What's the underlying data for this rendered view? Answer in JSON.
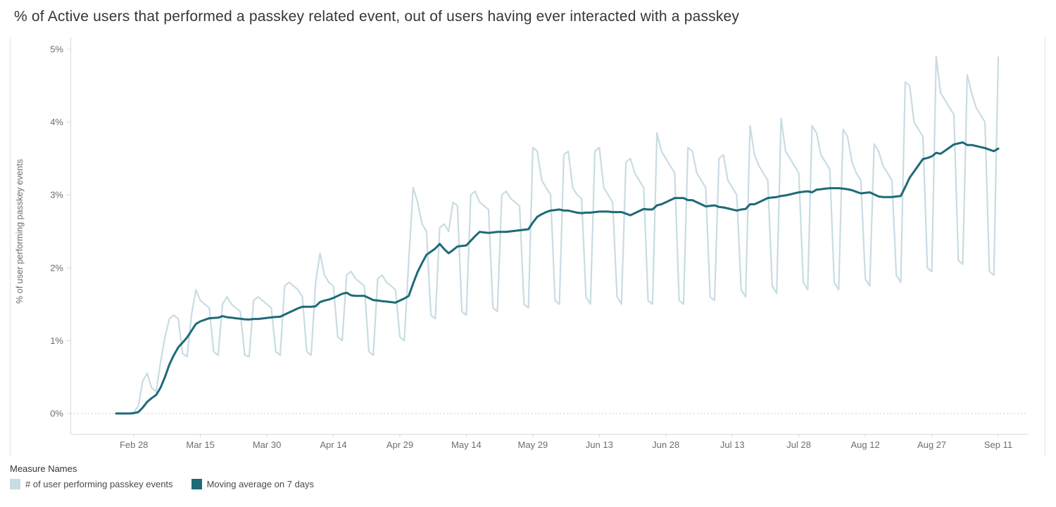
{
  "page": {
    "title": "% of Active users that performed a passkey related event, out of users having ever interacted with a passkey"
  },
  "colors": {
    "background": "#ffffff",
    "daily_series": "#c8dce3",
    "moving_average_series": "#1e6a77",
    "axis_line": "#d8d8d8",
    "zero_gridline": "#c9c9c9",
    "tick_text": "#6e6e6e",
    "title_text": "#363636"
  },
  "legend": {
    "title": "Measure Names",
    "items": [
      {
        "label": "# of user performing passkey events",
        "color": "#c8dce3"
      },
      {
        "label": "Moving average on 7 days",
        "color": "#1e6a77"
      }
    ]
  },
  "chart_data": {
    "type": "line",
    "title": "% of Active users that performed a passkey related event, out of users having ever interacted with a passkey",
    "xlabel": "",
    "ylabel": "% of user performing passkey events",
    "ylim": [
      0,
      5
    ],
    "y_ticks": [
      "0%",
      "1%",
      "2%",
      "3%",
      "4%",
      "5%"
    ],
    "y_tick_values": [
      0,
      1,
      2,
      3,
      4,
      5
    ],
    "grid": "dotted horizontal line at 0% only, white plot background",
    "legend_position": "bottom-left",
    "x_unit": "daily points, one per day",
    "x_tick_labels": [
      "Feb 28",
      "Mar 15",
      "Mar 30",
      "Apr 14",
      "Apr 29",
      "May 14",
      "May 29",
      "Jun 13",
      "Jun 28",
      "Jul 13",
      "Jul 28",
      "Aug 12",
      "Aug 27",
      "Sep 11"
    ],
    "x_tick_day_indices": [
      4,
      19,
      34,
      49,
      64,
      79,
      94,
      109,
      124,
      139,
      154,
      169,
      184,
      199
    ],
    "series": [
      {
        "name": "# of user performing passkey events",
        "color": "#c8dce3",
        "values": [
          0.0,
          0.0,
          0.0,
          0.0,
          0.02,
          0.1,
          0.45,
          0.55,
          0.35,
          0.3,
          0.7,
          1.05,
          1.3,
          1.35,
          1.3,
          0.82,
          0.78,
          1.35,
          1.7,
          1.55,
          1.5,
          1.45,
          0.85,
          0.8,
          1.5,
          1.6,
          1.5,
          1.45,
          1.4,
          0.8,
          0.78,
          1.55,
          1.6,
          1.55,
          1.5,
          1.45,
          0.85,
          0.8,
          1.75,
          1.8,
          1.75,
          1.7,
          1.6,
          0.85,
          0.8,
          1.8,
          2.2,
          1.9,
          1.8,
          1.75,
          1.05,
          1.0,
          1.9,
          1.95,
          1.85,
          1.8,
          1.75,
          0.85,
          0.8,
          1.85,
          1.9,
          1.8,
          1.75,
          1.7,
          1.05,
          1.0,
          2.1,
          3.1,
          2.9,
          2.6,
          2.5,
          1.35,
          1.3,
          2.55,
          2.6,
          2.5,
          2.9,
          2.85,
          1.4,
          1.35,
          3.0,
          3.05,
          2.9,
          2.85,
          2.8,
          1.45,
          1.4,
          3.0,
          3.05,
          2.95,
          2.9,
          2.85,
          1.5,
          1.45,
          3.65,
          3.6,
          3.2,
          3.1,
          3.0,
          1.55,
          1.5,
          3.55,
          3.6,
          3.1,
          3.0,
          2.95,
          1.6,
          1.5,
          3.6,
          3.65,
          3.1,
          3.0,
          2.9,
          1.6,
          1.5,
          3.45,
          3.5,
          3.3,
          3.2,
          3.1,
          1.55,
          1.5,
          3.85,
          3.6,
          3.5,
          3.4,
          3.3,
          1.55,
          1.5,
          3.65,
          3.6,
          3.3,
          3.2,
          3.1,
          1.6,
          1.55,
          3.5,
          3.55,
          3.2,
          3.1,
          3.0,
          1.7,
          1.6,
          3.95,
          3.55,
          3.4,
          3.3,
          3.2,
          1.75,
          1.65,
          4.05,
          3.6,
          3.5,
          3.4,
          3.3,
          1.8,
          1.7,
          3.95,
          3.85,
          3.55,
          3.45,
          3.35,
          1.8,
          1.7,
          3.9,
          3.8,
          3.45,
          3.3,
          3.2,
          1.85,
          1.75,
          3.7,
          3.6,
          3.4,
          3.3,
          3.2,
          1.9,
          1.8,
          4.55,
          4.5,
          4.0,
          3.9,
          3.8,
          2.0,
          1.95,
          4.9,
          4.4,
          4.3,
          4.2,
          4.1,
          2.1,
          2.05,
          4.65,
          4.4,
          4.2,
          4.1,
          4.0,
          1.95,
          1.9,
          4.9
        ]
      },
      {
        "name": "Moving average on 7 days",
        "color": "#1e6a77",
        "window": 7,
        "derived": "trailing 7-day moving average of the daily series above"
      }
    ]
  }
}
